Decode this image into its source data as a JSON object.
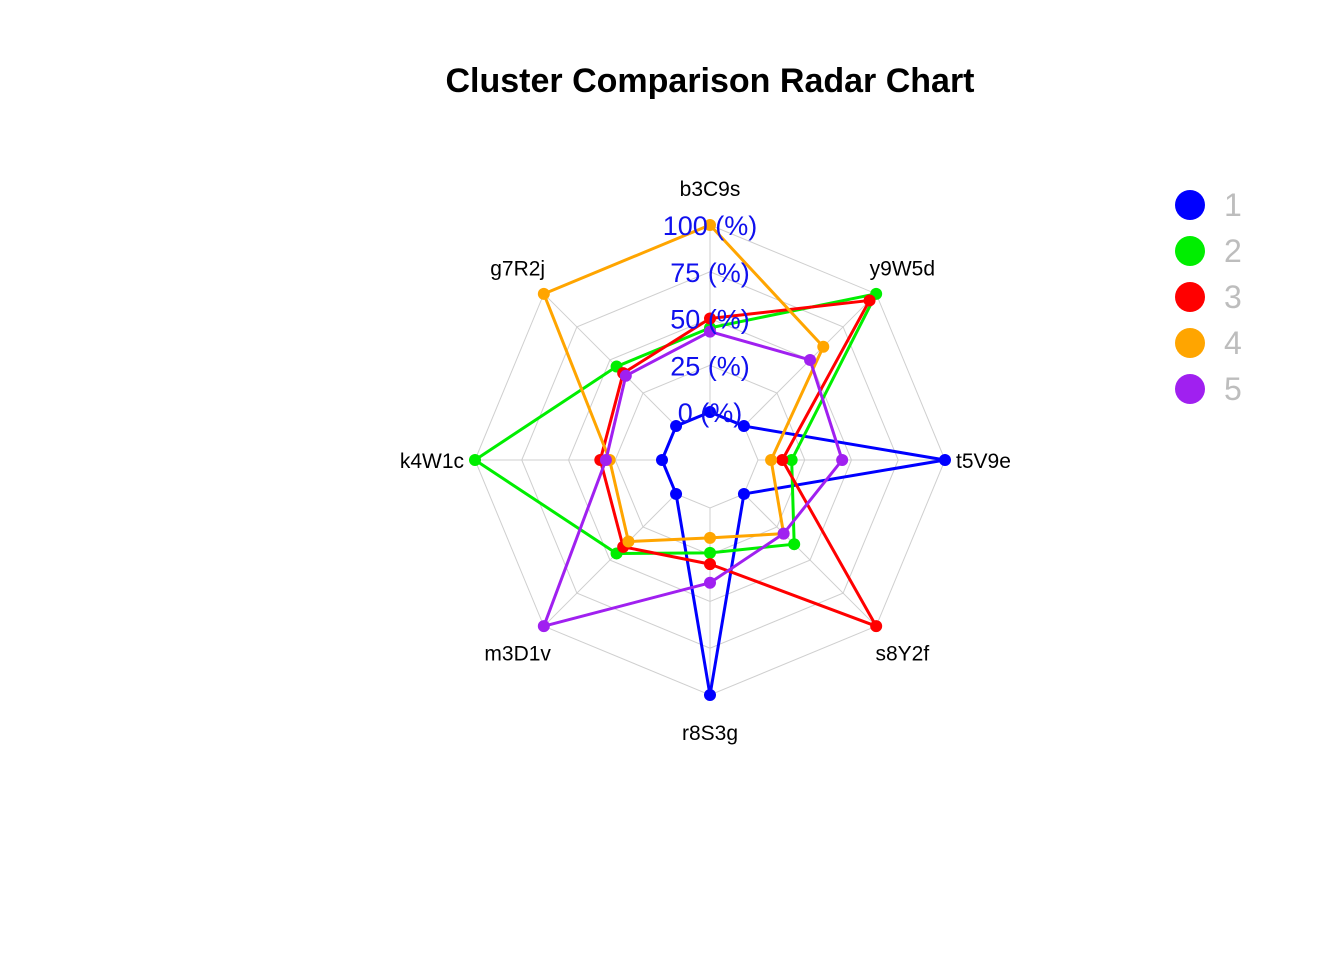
{
  "chart_data": {
    "type": "radar",
    "title": "Cluster Comparison Radar Chart",
    "axes": [
      "b3C9s",
      "y9W5d",
      "t5V9e",
      "s8Y2f",
      "r8S3g",
      "m3D1v",
      "k4W1c",
      "g7R2j"
    ],
    "tick_labels": [
      "0 (%)",
      "25 (%)",
      "50 (%)",
      "75 (%)",
      "100 (%)"
    ],
    "range": [
      0,
      100
    ],
    "grid": true,
    "legend_position": "right",
    "series": [
      {
        "name": "1",
        "color": "#0000ff",
        "values": [
          0,
          0,
          100,
          0,
          100,
          0,
          0,
          0
        ]
      },
      {
        "name": "2",
        "color": "#00ee00",
        "values": [
          45,
          100,
          18,
          38,
          24,
          45,
          100,
          45
        ]
      },
      {
        "name": "3",
        "color": "#ff0000",
        "values": [
          50,
          95,
          13,
          100,
          30,
          40,
          33,
          40
        ]
      },
      {
        "name": "4",
        "color": "#ffa500",
        "values": [
          100,
          60,
          7,
          30,
          16,
          36,
          28,
          100
        ]
      },
      {
        "name": "5",
        "color": "#a020f0",
        "values": [
          43,
          50,
          45,
          30,
          40,
          100,
          30,
          38
        ]
      }
    ]
  }
}
